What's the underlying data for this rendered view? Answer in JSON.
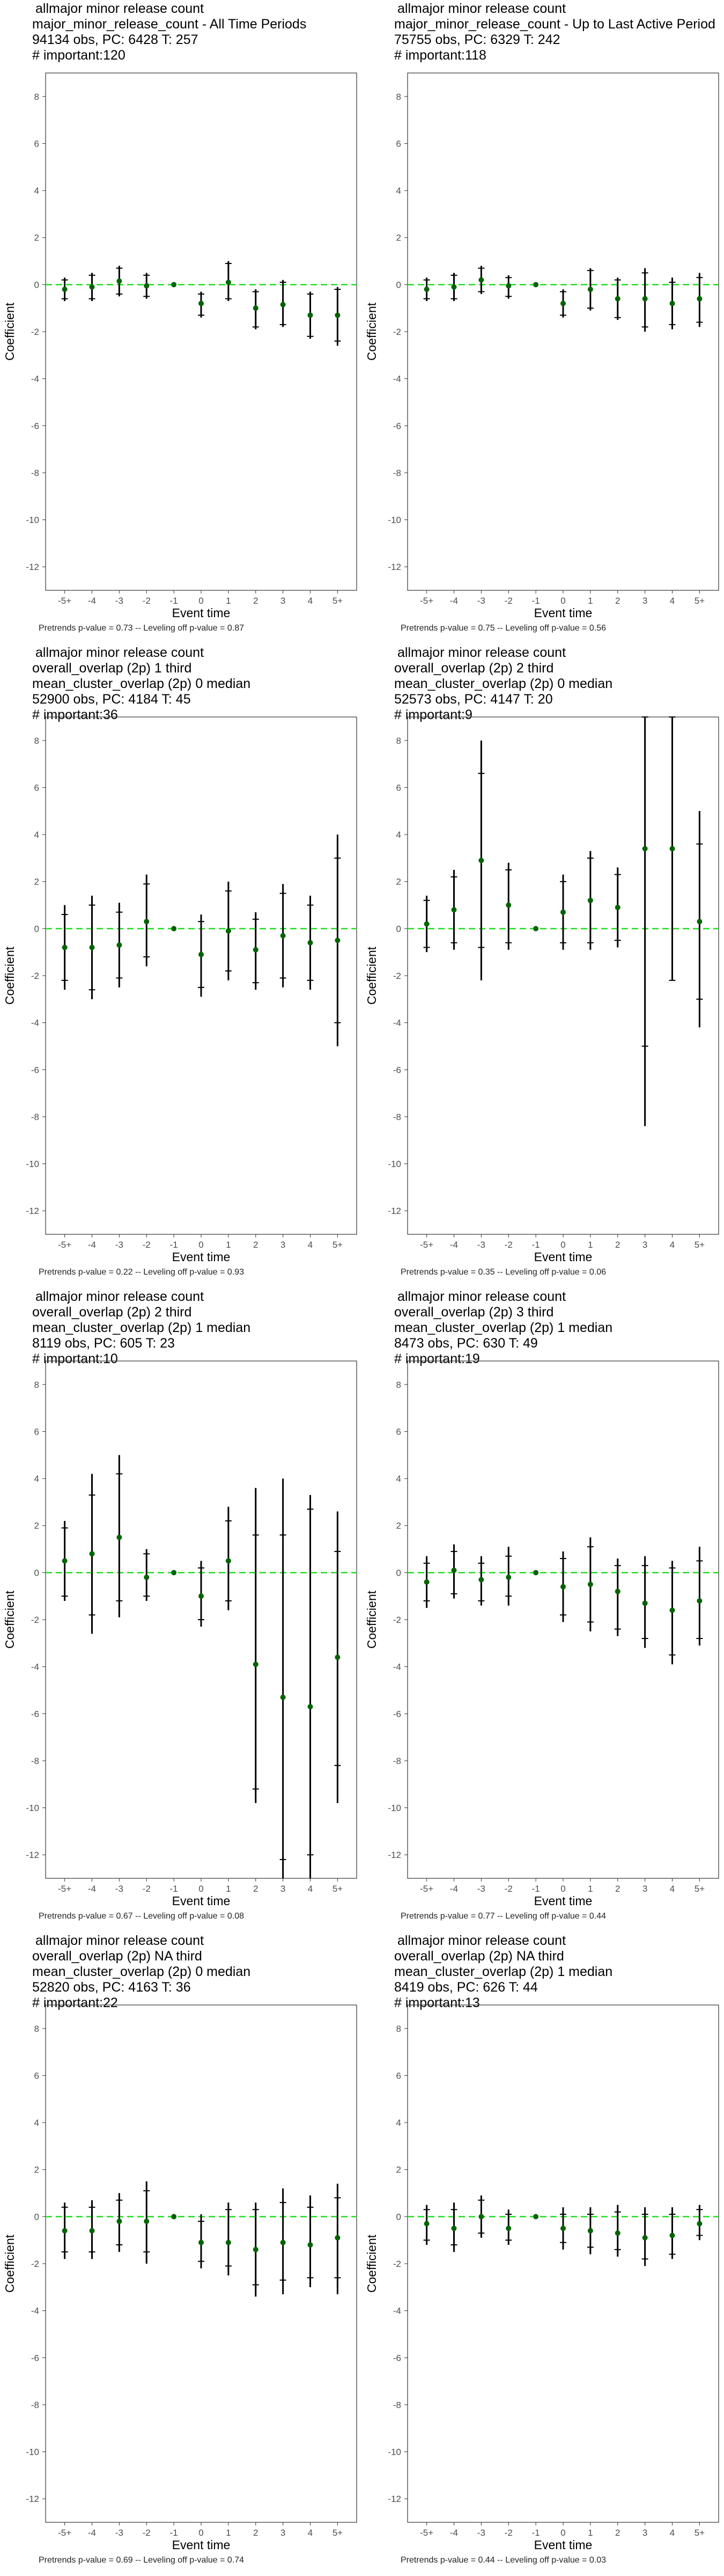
{
  "axes": {
    "xlabel": "Event time",
    "ylabel": "Coefficient",
    "yticks": [
      8,
      6,
      4,
      2,
      0,
      -2,
      -4,
      -6,
      -8,
      -10,
      -12
    ],
    "ylim": [
      -13,
      9
    ]
  },
  "colors": {
    "point": "#006400",
    "zero_line": "#22dd22",
    "bar": "#000000",
    "frame": "#333333"
  },
  "chart_data": [
    {
      "type": "scatter",
      "title_lines": [
        "allmajor minor release count",
        "major_minor_release_count - All Time Periods",
        "94134 obs, PC: 6428 T: 257",
        "# important:120"
      ],
      "footer": "Pretrends p-value = 0.73 -- Leveling off p-value = 0.87",
      "categories": [
        "-5+",
        "-4",
        "-3",
        "-2",
        "-1",
        "0",
        "1",
        "2",
        "3",
        "4",
        "5+"
      ],
      "values": [
        -0.2,
        -0.1,
        0.15,
        -0.05,
        0.0,
        -0.8,
        0.1,
        -1.0,
        -0.85,
        -1.3,
        -1.3
      ],
      "ci95": [
        [
          -0.7,
          0.3
        ],
        [
          -0.7,
          0.5
        ],
        [
          -0.5,
          0.8
        ],
        [
          -0.6,
          0.5
        ],
        [
          0.0,
          0.0
        ],
        [
          -1.4,
          -0.3
        ],
        [
          -0.7,
          1.0
        ],
        [
          -1.9,
          -0.2
        ],
        [
          -1.8,
          0.2
        ],
        [
          -2.3,
          -0.3
        ],
        [
          -2.6,
          -0.1
        ]
      ],
      "ci90": [
        [
          -0.6,
          0.2
        ],
        [
          -0.6,
          0.4
        ],
        [
          -0.4,
          0.7
        ],
        [
          -0.5,
          0.4
        ],
        [
          0.0,
          0.0
        ],
        [
          -1.3,
          -0.4
        ],
        [
          -0.6,
          0.9
        ],
        [
          -1.8,
          -0.3
        ],
        [
          -1.7,
          0.1
        ],
        [
          -2.2,
          -0.4
        ],
        [
          -2.4,
          -0.2
        ]
      ]
    },
    {
      "type": "scatter",
      "title_lines": [
        "allmajor minor release count",
        "major_minor_release_count - Up to Last Active Period",
        "75755 obs, PC: 6329 T: 242",
        "# important:118"
      ],
      "footer": "Pretrends p-value = 0.75 -- Leveling off p-value = 0.56",
      "categories": [
        "-5+",
        "-4",
        "-3",
        "-2",
        "-1",
        "0",
        "1",
        "2",
        "3",
        "4",
        "5+"
      ],
      "values": [
        -0.2,
        -0.1,
        0.2,
        -0.05,
        0.0,
        -0.8,
        -0.2,
        -0.6,
        -0.6,
        -0.8,
        -0.6
      ],
      "ci95": [
        [
          -0.7,
          0.3
        ],
        [
          -0.7,
          0.5
        ],
        [
          -0.4,
          0.8
        ],
        [
          -0.6,
          0.4
        ],
        [
          0.0,
          0.0
        ],
        [
          -1.4,
          -0.2
        ],
        [
          -1.1,
          0.7
        ],
        [
          -1.5,
          0.3
        ],
        [
          -2.0,
          0.7
        ],
        [
          -1.9,
          0.3
        ],
        [
          -1.8,
          0.5
        ]
      ],
      "ci90": [
        [
          -0.6,
          0.2
        ],
        [
          -0.6,
          0.4
        ],
        [
          -0.3,
          0.7
        ],
        [
          -0.5,
          0.3
        ],
        [
          0.0,
          0.0
        ],
        [
          -1.3,
          -0.3
        ],
        [
          -1.0,
          0.6
        ],
        [
          -1.4,
          0.2
        ],
        [
          -1.8,
          0.5
        ],
        [
          -1.7,
          0.1
        ],
        [
          -1.6,
          0.3
        ]
      ]
    },
    {
      "type": "scatter",
      "title_lines": [
        "allmajor minor release count",
        "overall_overlap (2p) 1 third",
        "mean_cluster_overlap (2p) 0 median",
        "52900 obs, PC: 4184 T: 45",
        "# important:36"
      ],
      "footer": "Pretrends p-value = 0.22 -- Leveling off p-value = 0.93",
      "categories": [
        "-5+",
        "-4",
        "-3",
        "-2",
        "-1",
        "0",
        "1",
        "2",
        "3",
        "4",
        "5+"
      ],
      "values": [
        -0.8,
        -0.8,
        -0.7,
        0.3,
        0.0,
        -1.1,
        -0.1,
        -0.9,
        -0.3,
        -0.6,
        -0.5
      ],
      "ci95": [
        [
          -2.6,
          1.0
        ],
        [
          -3.0,
          1.4
        ],
        [
          -2.5,
          1.1
        ],
        [
          -1.6,
          2.3
        ],
        [
          0.0,
          0.0
        ],
        [
          -2.9,
          0.6
        ],
        [
          -2.2,
          2.0
        ],
        [
          -2.6,
          0.7
        ],
        [
          -2.5,
          1.9
        ],
        [
          -2.6,
          1.4
        ],
        [
          -5.0,
          4.0
        ]
      ],
      "ci90": [
        [
          -2.2,
          0.6
        ],
        [
          -2.6,
          1.0
        ],
        [
          -2.1,
          0.7
        ],
        [
          -1.2,
          1.9
        ],
        [
          0.0,
          0.0
        ],
        [
          -2.5,
          0.3
        ],
        [
          -1.8,
          1.6
        ],
        [
          -2.3,
          0.4
        ],
        [
          -2.1,
          1.5
        ],
        [
          -2.2,
          1.0
        ],
        [
          -4.0,
          3.0
        ]
      ]
    },
    {
      "type": "scatter",
      "title_lines": [
        "allmajor minor release count",
        "overall_overlap (2p) 2 third",
        "mean_cluster_overlap (2p) 0 median",
        "52573 obs, PC: 4147 T: 20",
        "# important:9"
      ],
      "footer": "Pretrends p-value = 0.35 -- Leveling off p-value = 0.06",
      "categories": [
        "-5+",
        "-4",
        "-3",
        "-2",
        "-1",
        "0",
        "1",
        "2",
        "3",
        "4",
        "5+"
      ],
      "values": [
        0.2,
        0.8,
        2.9,
        1.0,
        0.0,
        0.7,
        1.2,
        0.9,
        3.4,
        3.4,
        0.3
      ],
      "ci95": [
        [
          -1.0,
          1.4
        ],
        [
          -0.9,
          2.5
        ],
        [
          -2.2,
          8.0
        ],
        [
          -0.9,
          2.8
        ],
        [
          0.0,
          0.0
        ],
        [
          -0.9,
          2.3
        ],
        [
          -0.9,
          3.3
        ],
        [
          -0.8,
          2.6
        ],
        [
          -8.4,
          9.0
        ],
        [
          -2.2,
          9.0
        ],
        [
          -4.2,
          5.0
        ]
      ],
      "ci90": [
        [
          -0.8,
          1.2
        ],
        [
          -0.6,
          2.2
        ],
        [
          -0.8,
          6.6
        ],
        [
          -0.6,
          2.5
        ],
        [
          0.0,
          0.0
        ],
        [
          -0.6,
          2.0
        ],
        [
          -0.6,
          3.0
        ],
        [
          -0.5,
          2.3
        ],
        [
          -5.0,
          9.0
        ],
        [
          -2.2,
          9.0
        ],
        [
          -3.0,
          3.6
        ]
      ]
    },
    {
      "type": "scatter",
      "title_lines": [
        "allmajor minor release count",
        "overall_overlap (2p) 2 third",
        "mean_cluster_overlap (2p) 1 median",
        "8119 obs, PC: 605 T: 23",
        "# important:10"
      ],
      "footer": "Pretrends p-value = 0.67 -- Leveling off p-value = 0.08",
      "categories": [
        "-5+",
        "-4",
        "-3",
        "-2",
        "-1",
        "0",
        "1",
        "2",
        "3",
        "4",
        "5+"
      ],
      "values": [
        0.5,
        0.8,
        1.5,
        -0.2,
        0.0,
        -1.0,
        0.5,
        -3.9,
        -5.3,
        -5.7,
        -3.6
      ],
      "ci95": [
        [
          -1.2,
          2.2
        ],
        [
          -2.6,
          4.2
        ],
        [
          -1.9,
          5.0
        ],
        [
          -1.2,
          1.0
        ],
        [
          0.0,
          0.0
        ],
        [
          -2.3,
          0.5
        ],
        [
          -1.6,
          2.8
        ],
        [
          -9.8,
          3.6
        ],
        [
          -13.0,
          4.0
        ],
        [
          -13.0,
          3.3
        ],
        [
          -9.8,
          2.6
        ]
      ],
      "ci90": [
        [
          -1.0,
          1.9
        ],
        [
          -1.8,
          3.3
        ],
        [
          -1.2,
          4.2
        ],
        [
          -1.0,
          0.8
        ],
        [
          0.0,
          0.0
        ],
        [
          -2.0,
          0.2
        ],
        [
          -1.2,
          2.2
        ],
        [
          -9.2,
          1.6
        ],
        [
          -12.2,
          1.6
        ],
        [
          -12.0,
          2.7
        ],
        [
          -8.2,
          0.9
        ]
      ]
    },
    {
      "type": "scatter",
      "title_lines": [
        "allmajor minor release count",
        "overall_overlap (2p) 3 third",
        "mean_cluster_overlap (2p) 1 median",
        "8473 obs, PC: 630 T: 49",
        "# important:19"
      ],
      "footer": "Pretrends p-value = 0.77 -- Leveling off p-value = 0.44",
      "categories": [
        "-5+",
        "-4",
        "-3",
        "-2",
        "-1",
        "0",
        "1",
        "2",
        "3",
        "4",
        "5+"
      ],
      "values": [
        -0.4,
        0.1,
        -0.3,
        -0.2,
        0.0,
        -0.6,
        -0.5,
        -0.8,
        -1.3,
        -1.6,
        -1.2
      ],
      "ci95": [
        [
          -1.5,
          0.7
        ],
        [
          -1.1,
          1.2
        ],
        [
          -1.4,
          0.7
        ],
        [
          -1.4,
          1.1
        ],
        [
          0.0,
          0.0
        ],
        [
          -2.1,
          0.9
        ],
        [
          -2.5,
          1.5
        ],
        [
          -2.7,
          0.6
        ],
        [
          -3.2,
          0.7
        ],
        [
          -3.9,
          0.5
        ],
        [
          -3.1,
          1.1
        ]
      ],
      "ci90": [
        [
          -1.2,
          0.4
        ],
        [
          -0.9,
          0.9
        ],
        [
          -1.2,
          0.4
        ],
        [
          -1.0,
          0.7
        ],
        [
          0.0,
          0.0
        ],
        [
          -1.8,
          0.6
        ],
        [
          -2.1,
          1.1
        ],
        [
          -2.4,
          0.3
        ],
        [
          -2.8,
          0.3
        ],
        [
          -3.5,
          0.2
        ],
        [
          -2.8,
          0.5
        ]
      ]
    },
    {
      "type": "scatter",
      "title_lines": [
        "allmajor minor release count",
        "overall_overlap (2p) NA third",
        "mean_cluster_overlap (2p) 0 median",
        "52820 obs, PC: 4163 T: 36",
        "# important:22"
      ],
      "footer": "Pretrends p-value = 0.69 -- Leveling off p-value = 0.74",
      "categories": [
        "-5+",
        "-4",
        "-3",
        "-2",
        "-1",
        "0",
        "1",
        "2",
        "3",
        "4",
        "5+"
      ],
      "values": [
        -0.6,
        -0.6,
        -0.2,
        -0.2,
        0.0,
        -1.1,
        -1.1,
        -1.4,
        -1.1,
        -1.2,
        -0.9
      ],
      "ci95": [
        [
          -1.8,
          0.6
        ],
        [
          -1.8,
          0.7
        ],
        [
          -1.5,
          1.0
        ],
        [
          -2.0,
          1.5
        ],
        [
          0.0,
          0.0
        ],
        [
          -2.2,
          0.1
        ],
        [
          -2.5,
          0.6
        ],
        [
          -3.4,
          0.6
        ],
        [
          -3.3,
          1.2
        ],
        [
          -3.0,
          0.9
        ],
        [
          -3.3,
          1.4
        ]
      ],
      "ci90": [
        [
          -1.5,
          0.4
        ],
        [
          -1.5,
          0.4
        ],
        [
          -1.2,
          0.7
        ],
        [
          -1.5,
          1.1
        ],
        [
          0.0,
          0.0
        ],
        [
          -1.9,
          -0.2
        ],
        [
          -2.1,
          0.3
        ],
        [
          -2.9,
          0.3
        ],
        [
          -2.7,
          0.6
        ],
        [
          -2.6,
          0.4
        ],
        [
          -2.6,
          0.8
        ]
      ]
    },
    {
      "type": "scatter",
      "title_lines": [
        "allmajor minor release count",
        "overall_overlap (2p) NA third",
        "mean_cluster_overlap (2p) 1 median",
        "8419 obs, PC: 626 T: 44",
        "# important:13"
      ],
      "footer": "Pretrends p-value = 0.44 -- Leveling off p-value = 0.03",
      "categories": [
        "-5+",
        "-4",
        "-3",
        "-2",
        "-1",
        "0",
        "1",
        "2",
        "3",
        "4",
        "5+"
      ],
      "values": [
        -0.3,
        -0.5,
        0.0,
        -0.5,
        0.0,
        -0.5,
        -0.6,
        -0.7,
        -0.9,
        -0.8,
        -0.3
      ],
      "ci95": [
        [
          -1.2,
          0.5
        ],
        [
          -1.5,
          0.6
        ],
        [
          -0.9,
          0.9
        ],
        [
          -1.2,
          0.3
        ],
        [
          0.0,
          0.0
        ],
        [
          -1.4,
          0.4
        ],
        [
          -1.6,
          0.4
        ],
        [
          -1.7,
          0.5
        ],
        [
          -2.1,
          0.4
        ],
        [
          -1.8,
          0.4
        ],
        [
          -1.0,
          0.5
        ]
      ],
      "ci90": [
        [
          -1.0,
          0.3
        ],
        [
          -1.2,
          0.3
        ],
        [
          -0.7,
          0.7
        ],
        [
          -1.0,
          0.1
        ],
        [
          0.0,
          0.0
        ],
        [
          -1.1,
          0.1
        ],
        [
          -1.3,
          0.1
        ],
        [
          -1.4,
          0.2
        ],
        [
          -1.8,
          0.1
        ],
        [
          -1.6,
          0.1
        ],
        [
          -0.8,
          0.3
        ]
      ]
    }
  ]
}
